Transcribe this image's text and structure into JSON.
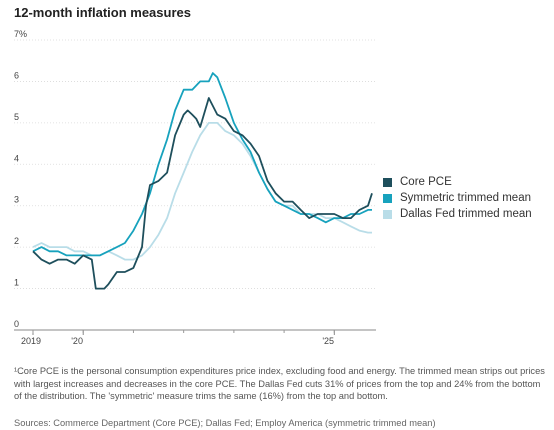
{
  "chart_data": {
    "type": "line",
    "title": "12-month inflation measures",
    "ylim": [
      0,
      7
    ],
    "y_ticks": [
      "7%",
      "6",
      "5",
      "4",
      "3",
      "2",
      "1",
      "0"
    ],
    "y_tick_values": [
      7,
      6,
      5,
      4,
      3,
      2,
      1,
      0
    ],
    "x_range": [
      2019.0,
      2025.83
    ],
    "x_ticks": [
      {
        "label": "2019",
        "value": 2019.0
      },
      {
        "label": "'20",
        "value": 2020.0
      },
      {
        "label": "'25",
        "value": 2025.0
      }
    ],
    "legend_position": "right",
    "grid": "horizontal",
    "series": [
      {
        "name": "Core PCE",
        "color": "#1e4f5c",
        "x": [
          2019.0,
          2019.17,
          2019.33,
          2019.5,
          2019.67,
          2019.83,
          2020.0,
          2020.17,
          2020.25,
          2020.33,
          2020.42,
          2020.5,
          2020.67,
          2020.83,
          2021.0,
          2021.17,
          2021.25,
          2021.33,
          2021.5,
          2021.67,
          2021.83,
          2022.0,
          2022.08,
          2022.17,
          2022.25,
          2022.33,
          2022.5,
          2022.67,
          2022.83,
          2023.0,
          2023.17,
          2023.33,
          2023.5,
          2023.67,
          2023.83,
          2024.0,
          2024.17,
          2024.33,
          2024.5,
          2024.67,
          2024.83,
          2025.0,
          2025.17,
          2025.33,
          2025.5,
          2025.67,
          2025.75
        ],
        "values": [
          1.9,
          1.7,
          1.6,
          1.7,
          1.7,
          1.6,
          1.8,
          1.7,
          1.0,
          1.0,
          1.0,
          1.1,
          1.4,
          1.4,
          1.5,
          2.0,
          3.0,
          3.5,
          3.6,
          3.8,
          4.7,
          5.2,
          5.3,
          5.2,
          5.1,
          4.9,
          5.6,
          5.2,
          5.1,
          4.8,
          4.7,
          4.5,
          4.2,
          3.6,
          3.3,
          3.1,
          3.1,
          2.9,
          2.7,
          2.8,
          2.8,
          2.8,
          2.7,
          2.7,
          2.9,
          3.0,
          3.3
        ]
      },
      {
        "name": "Symmetric trimmed mean",
        "color": "#17a2bd",
        "x": [
          2019.0,
          2019.17,
          2019.33,
          2019.5,
          2019.67,
          2019.83,
          2020.0,
          2020.17,
          2020.33,
          2020.5,
          2020.67,
          2020.83,
          2021.0,
          2021.17,
          2021.33,
          2021.5,
          2021.67,
          2021.83,
          2022.0,
          2022.17,
          2022.33,
          2022.5,
          2022.58,
          2022.67,
          2022.83,
          2023.0,
          2023.17,
          2023.33,
          2023.5,
          2023.67,
          2023.83,
          2024.0,
          2024.17,
          2024.33,
          2024.5,
          2024.67,
          2024.83,
          2025.0,
          2025.17,
          2025.33,
          2025.5,
          2025.67,
          2025.75
        ],
        "values": [
          1.9,
          2.0,
          1.9,
          1.9,
          1.8,
          1.8,
          1.8,
          1.8,
          1.8,
          1.9,
          2.0,
          2.1,
          2.4,
          2.8,
          3.3,
          4.0,
          4.6,
          5.3,
          5.8,
          5.8,
          6.0,
          6.0,
          6.2,
          6.1,
          5.6,
          5.0,
          4.6,
          4.3,
          3.8,
          3.4,
          3.1,
          3.0,
          2.9,
          2.8,
          2.8,
          2.7,
          2.6,
          2.7,
          2.7,
          2.8,
          2.8,
          2.9,
          2.9
        ]
      },
      {
        "name": "Dallas Fed trimmed mean",
        "color": "#b9dde8",
        "x": [
          2019.0,
          2019.17,
          2019.33,
          2019.5,
          2019.67,
          2019.83,
          2020.0,
          2020.17,
          2020.33,
          2020.5,
          2020.67,
          2020.83,
          2021.0,
          2021.17,
          2021.33,
          2021.5,
          2021.67,
          2021.83,
          2022.0,
          2022.17,
          2022.33,
          2022.5,
          2022.67,
          2022.83,
          2023.0,
          2023.17,
          2023.33,
          2023.5,
          2023.67,
          2023.83,
          2024.0,
          2024.17,
          2024.33,
          2024.5,
          2024.67,
          2024.83,
          2025.0,
          2025.17,
          2025.33,
          2025.5,
          2025.67,
          2025.75
        ],
        "values": [
          2.0,
          2.1,
          2.0,
          2.0,
          2.0,
          1.9,
          1.9,
          1.8,
          1.8,
          1.9,
          1.8,
          1.7,
          1.7,
          1.8,
          2.0,
          2.3,
          2.7,
          3.3,
          3.8,
          4.3,
          4.7,
          5.0,
          5.0,
          4.8,
          4.7,
          4.5,
          4.2,
          3.8,
          3.4,
          3.1,
          3.0,
          3.0,
          2.8,
          2.8,
          2.8,
          2.7,
          2.7,
          2.6,
          2.5,
          2.4,
          2.35,
          2.35
        ]
      }
    ]
  },
  "footnote": "¹Core PCE is the personal consumption expenditures price index, excluding food and energy. The trimmed mean strips out prices with largest increases and decreases in the core PCE. The Dallas Fed cuts 31% of prices from the top and 24% from the bottom of the distribution. The 'symmetric' measure trims the same (16%) from the top and bottom.",
  "source": "Sources: Commerce Department (Core PCE); Dallas Fed; Employ America (symmetric trimmed mean)",
  "legend": [
    {
      "label": "Core PCE",
      "color": "#1e4f5c"
    },
    {
      "label": "Symmetric trimmed mean",
      "color": "#17a2bd"
    },
    {
      "label": "Dallas Fed trimmed mean",
      "color": "#b9dde8"
    }
  ]
}
